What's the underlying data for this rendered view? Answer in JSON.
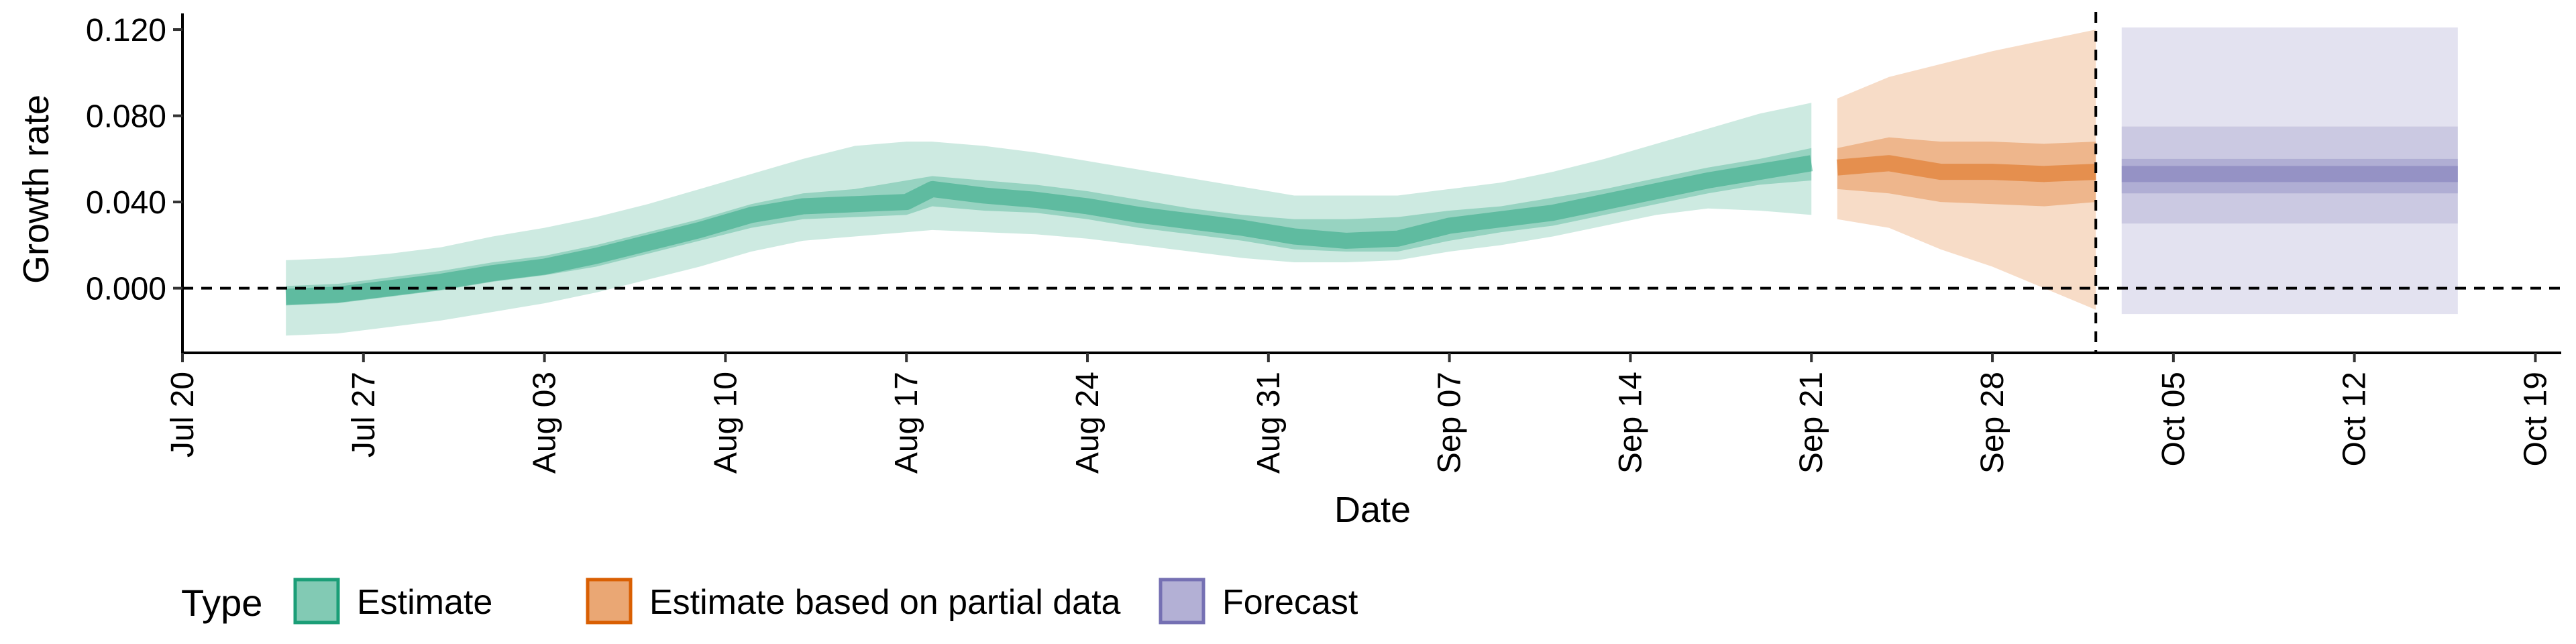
{
  "chart_data": {
    "type": "area",
    "xlabel": "Date",
    "ylabel": "Growth rate",
    "x_ticks": [
      "Jul 20",
      "Jul 27",
      "Aug 03",
      "Aug 10",
      "Aug 17",
      "Aug 24",
      "Aug 31",
      "Sep 07",
      "Sep 14",
      "Sep 21",
      "Sep 28",
      "Oct 05",
      "Oct 12",
      "Oct 19"
    ],
    "y_ticks": [
      "0.000",
      "0.040",
      "0.080",
      "0.120"
    ],
    "xlim": [
      "2020-07-20",
      "2020-10-20"
    ],
    "ylim": [
      -0.03,
      0.125
    ],
    "reference_lines": {
      "horizontal_y": 0.0,
      "vertical_date": "2020-10-02"
    },
    "legend": {
      "title": "Type",
      "position": "bottom-left",
      "entries": [
        {
          "label": "Estimate",
          "color": "#1B9E77"
        },
        {
          "label": "Estimate based on partial data",
          "color": "#D95F02"
        },
        {
          "label": "Forecast",
          "color": "#7570B3"
        }
      ]
    },
    "series": [
      {
        "name": "Estimate",
        "color": "#1B9E77",
        "dates": [
          "2020-07-24",
          "2020-07-26",
          "2020-07-28",
          "2020-07-30",
          "2020-08-01",
          "2020-08-03",
          "2020-08-05",
          "2020-08-07",
          "2020-08-09",
          "2020-08-11",
          "2020-08-13",
          "2020-08-15",
          "2020-08-17",
          "2020-08-18",
          "2020-08-20",
          "2020-08-22",
          "2020-08-24",
          "2020-08-26",
          "2020-08-28",
          "2020-08-30",
          "2020-09-01",
          "2020-09-03",
          "2020-09-05",
          "2020-09-07",
          "2020-09-09",
          "2020-09-11",
          "2020-09-13",
          "2020-09-15",
          "2020-09-17",
          "2020-09-19",
          "2020-09-21"
        ],
        "median": [
          -0.004,
          -0.003,
          0.0,
          0.003,
          0.007,
          0.01,
          0.015,
          0.021,
          0.027,
          0.034,
          0.038,
          0.039,
          0.04,
          0.046,
          0.043,
          0.041,
          0.038,
          0.034,
          0.031,
          0.028,
          0.024,
          0.022,
          0.023,
          0.029,
          0.032,
          0.035,
          0.04,
          0.045,
          0.05,
          0.054,
          0.058
        ],
        "lower_50": [
          -0.008,
          -0.007,
          -0.004,
          -0.001,
          0.003,
          0.006,
          0.01,
          0.016,
          0.022,
          0.028,
          0.032,
          0.033,
          0.034,
          0.038,
          0.036,
          0.035,
          0.032,
          0.028,
          0.025,
          0.022,
          0.018,
          0.017,
          0.017,
          0.022,
          0.026,
          0.029,
          0.034,
          0.039,
          0.044,
          0.048,
          0.05
        ],
        "upper_50": [
          0.001,
          0.002,
          0.005,
          0.008,
          0.012,
          0.015,
          0.02,
          0.026,
          0.032,
          0.039,
          0.044,
          0.046,
          0.05,
          0.052,
          0.05,
          0.048,
          0.045,
          0.041,
          0.037,
          0.034,
          0.032,
          0.032,
          0.033,
          0.036,
          0.038,
          0.042,
          0.046,
          0.051,
          0.056,
          0.06,
          0.065
        ],
        "lower_90": [
          -0.022,
          -0.021,
          -0.018,
          -0.015,
          -0.011,
          -0.007,
          -0.002,
          0.004,
          0.01,
          0.017,
          0.022,
          0.024,
          0.026,
          0.027,
          0.026,
          0.025,
          0.023,
          0.02,
          0.017,
          0.014,
          0.012,
          0.012,
          0.013,
          0.017,
          0.02,
          0.024,
          0.029,
          0.034,
          0.037,
          0.036,
          0.034
        ],
        "upper_90": [
          0.013,
          0.014,
          0.016,
          0.019,
          0.024,
          0.028,
          0.033,
          0.039,
          0.046,
          0.053,
          0.06,
          0.066,
          0.068,
          0.068,
          0.066,
          0.063,
          0.059,
          0.055,
          0.051,
          0.047,
          0.043,
          0.043,
          0.043,
          0.046,
          0.049,
          0.054,
          0.06,
          0.067,
          0.074,
          0.081,
          0.086
        ]
      },
      {
        "name": "Estimate based on partial data",
        "color": "#D95F02",
        "dates": [
          "2020-09-22",
          "2020-09-24",
          "2020-09-26",
          "2020-09-28",
          "2020-09-30",
          "2020-10-02"
        ],
        "median": [
          0.056,
          0.058,
          0.054,
          0.054,
          0.053,
          0.054
        ],
        "lower_50": [
          0.046,
          0.044,
          0.04,
          0.039,
          0.038,
          0.04
        ],
        "upper_50": [
          0.065,
          0.07,
          0.068,
          0.068,
          0.067,
          0.068
        ],
        "lower_90": [
          0.032,
          0.028,
          0.018,
          0.01,
          0.0,
          -0.01
        ],
        "upper_90": [
          0.088,
          0.098,
          0.104,
          0.11,
          0.115,
          0.12
        ]
      },
      {
        "name": "Forecast",
        "color": "#7570B3",
        "dates": [
          "2020-10-03",
          "2020-10-16"
        ],
        "median": [
          0.053,
          0.053
        ],
        "lower_50": [
          0.044,
          0.044
        ],
        "upper_50": [
          0.06,
          0.06
        ],
        "lower_90": [
          0.03,
          0.03
        ],
        "upper_90": [
          0.075,
          0.075
        ],
        "lower_outer": [
          -0.012,
          -0.012
        ],
        "upper_outer": [
          0.121,
          0.121
        ]
      }
    ]
  }
}
